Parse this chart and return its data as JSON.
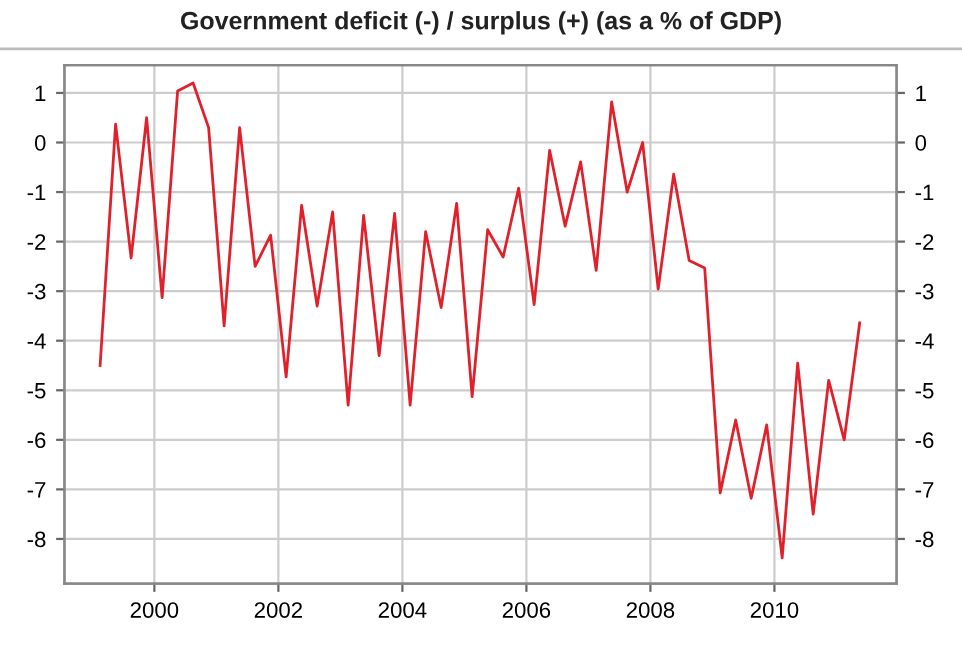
{
  "chart_data": {
    "type": "line",
    "title": "Government deficit (-) / surplus (+) (as a % of GDP)",
    "x": [
      1999.125,
      1999.375,
      1999.625,
      1999.875,
      2000.125,
      2000.375,
      2000.625,
      2000.875,
      2001.125,
      2001.375,
      2001.625,
      2001.875,
      2002.125,
      2002.375,
      2002.625,
      2002.875,
      2003.125,
      2003.375,
      2003.625,
      2003.875,
      2004.125,
      2004.375,
      2004.625,
      2004.875,
      2005.125,
      2005.375,
      2005.625,
      2005.875,
      2006.125,
      2006.375,
      2006.625,
      2006.875,
      2007.125,
      2007.375,
      2007.625,
      2007.875,
      2008.125,
      2008.375,
      2008.625,
      2008.875,
      2009.125,
      2009.375,
      2009.625,
      2009.875,
      2010.125,
      2010.375,
      2010.625,
      2010.875,
      2011.125,
      2011.375
    ],
    "series": [
      {
        "color": "#e0202a",
        "values": [
          -4.5,
          0.37,
          -2.33,
          0.5,
          -3.13,
          1.04,
          1.2,
          0.3,
          -3.7,
          0.3,
          -2.5,
          -1.87,
          -4.73,
          -1.27,
          -3.3,
          -1.4,
          -5.3,
          -1.47,
          -4.3,
          -1.43,
          -5.3,
          -1.8,
          -3.33,
          -1.23,
          -5.13,
          -1.76,
          -2.31,
          -0.92,
          -3.27,
          -0.16,
          -1.69,
          -0.39,
          -2.58,
          0.82,
          -1.0,
          0.0,
          -2.96,
          -0.64,
          -2.38,
          -2.53,
          -7.07,
          -5.6,
          -7.18,
          -5.7,
          -8.38,
          -4.45,
          -7.5,
          -4.8,
          -6.0,
          -3.64
        ]
      }
    ],
    "xlim": [
      1998.55,
      2011.97
    ],
    "xticks": [
      2000,
      2002,
      2004,
      2006,
      2008,
      2010
    ],
    "ylim": [
      -8.9,
      1.56
    ],
    "yticks": [
      -8,
      -7,
      -6,
      -5,
      -4,
      -3,
      -2,
      -1,
      0,
      1
    ],
    "y2lim": [
      -8.9,
      1.56
    ],
    "y2ticks": [
      -8,
      -7,
      -6,
      -5,
      -4,
      -3,
      -2,
      -1,
      0,
      1
    ],
    "grid": true
  }
}
